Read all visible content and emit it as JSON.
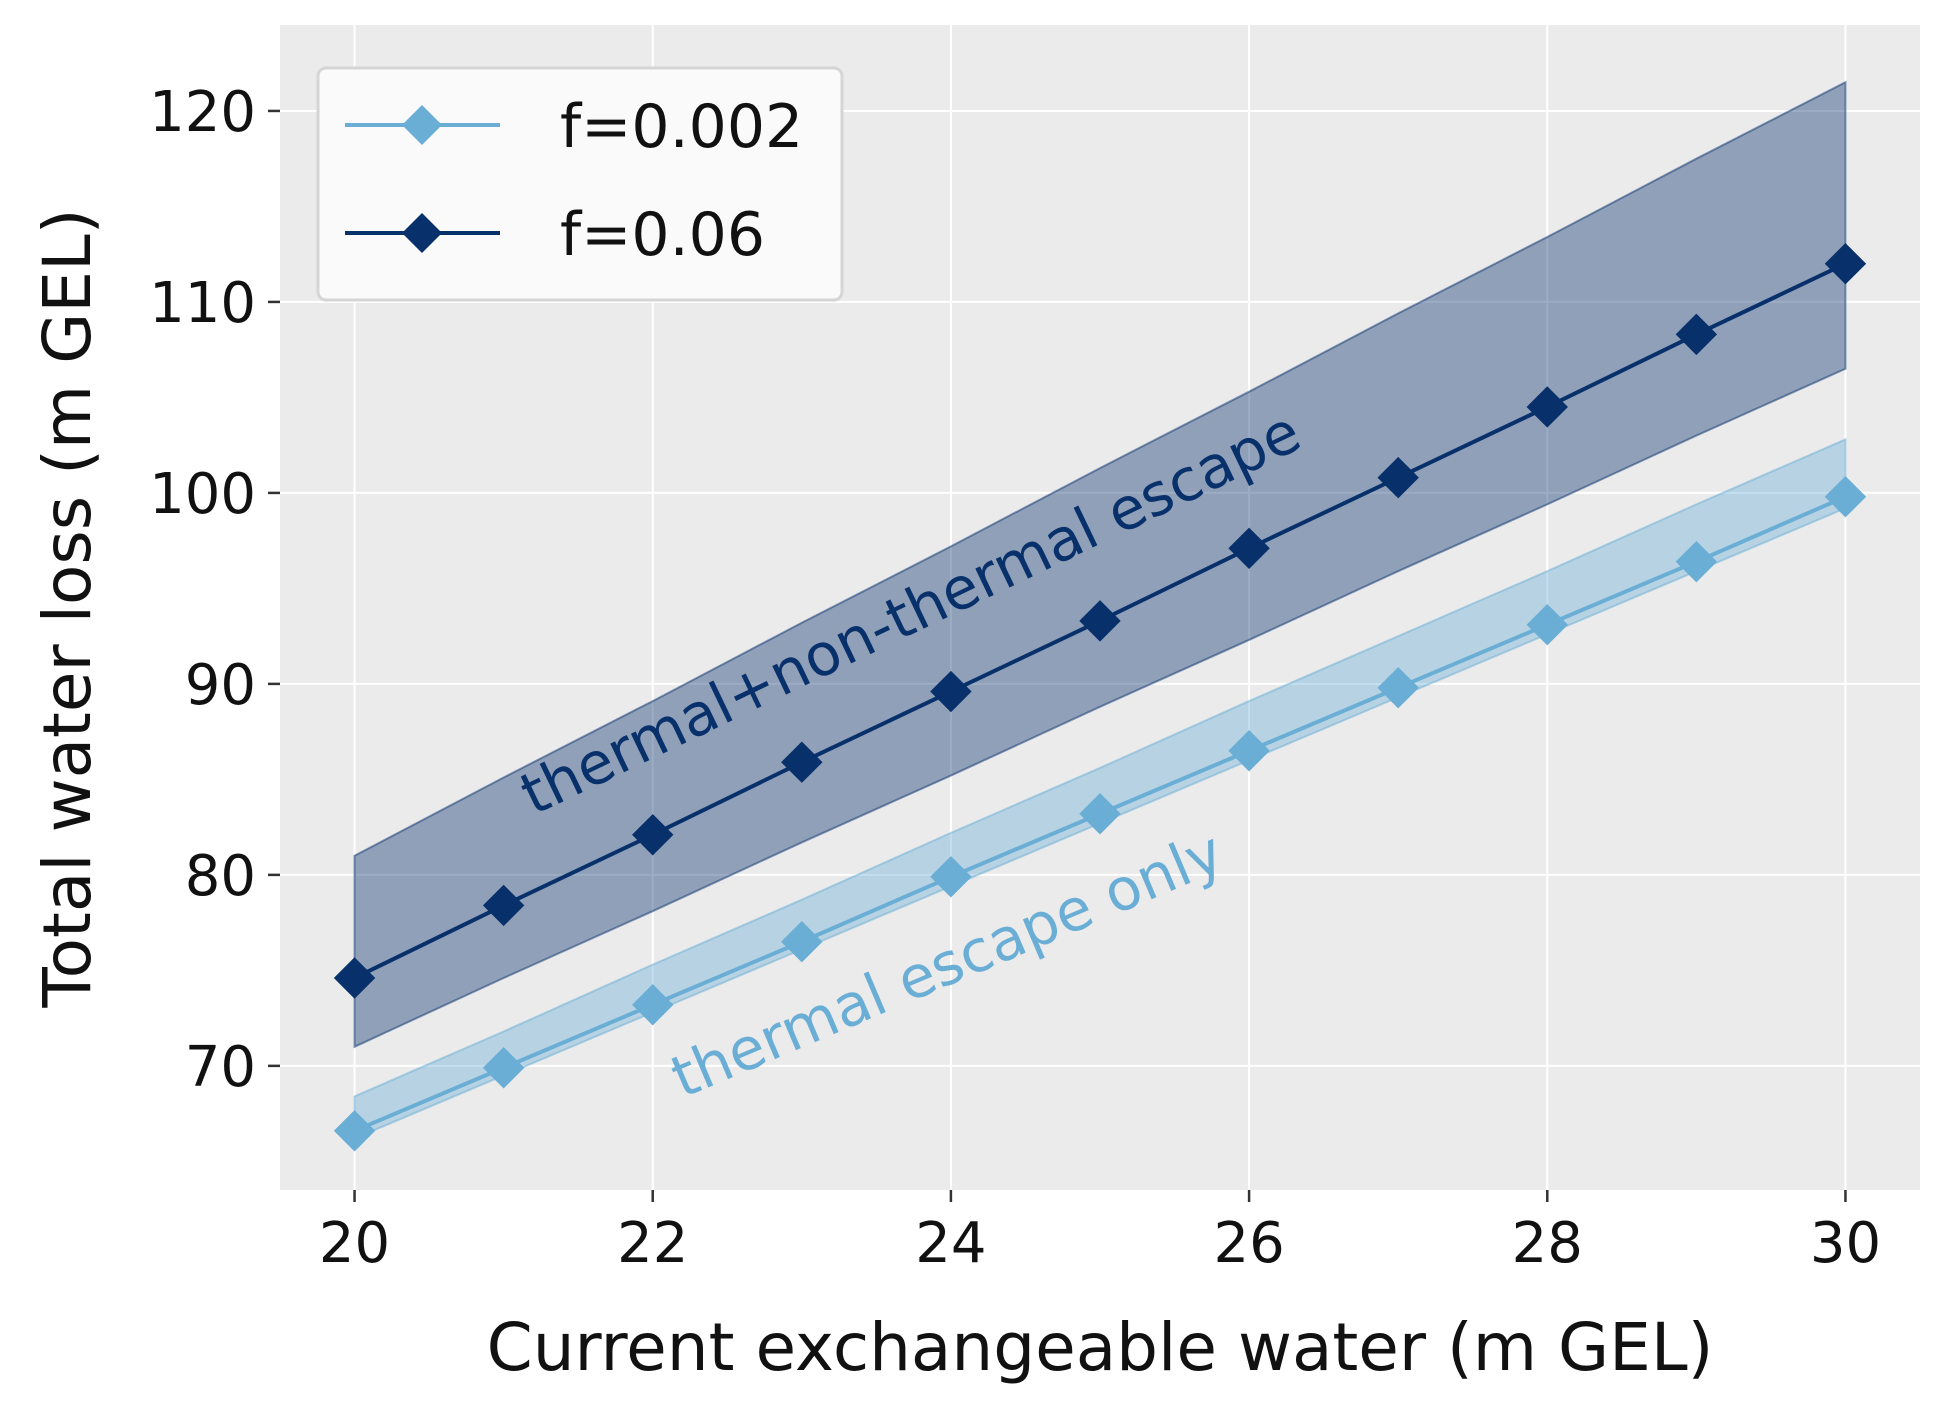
{
  "chart_data": {
    "type": "line",
    "title": "",
    "xlabel": "Current exchangeable water (m GEL)",
    "ylabel": "Total water loss (m GEL)",
    "xlim": [
      19.5,
      30.5
    ],
    "ylim": [
      63.5,
      124.5
    ],
    "xticks": [
      20,
      22,
      24,
      26,
      28,
      30
    ],
    "yticks": [
      70,
      80,
      90,
      100,
      110,
      120
    ],
    "grid": true,
    "legend_position": "top-left",
    "x": [
      20,
      21,
      22,
      23,
      24,
      25,
      26,
      27,
      28,
      29,
      30
    ],
    "series": [
      {
        "name": "f=0.002",
        "color": "#6aaed6",
        "marker": "diamond",
        "values": [
          66.6,
          69.9,
          73.2,
          76.5,
          79.9,
          83.2,
          86.5,
          89.8,
          93.1,
          96.4,
          99.8
        ],
        "band_lower": [
          66.2,
          69.5,
          72.8,
          76.1,
          79.4,
          82.7,
          86.0,
          89.3,
          92.6,
          95.9,
          99.2
        ],
        "band_upper": [
          68.4,
          71.8,
          75.3,
          78.7,
          82.2,
          85.6,
          89.1,
          92.5,
          95.9,
          99.4,
          102.8
        ]
      },
      {
        "name": "f=0.06",
        "color": "#08306b",
        "marker": "diamond",
        "values": [
          74.6,
          78.4,
          82.1,
          85.9,
          89.6,
          93.3,
          97.1,
          100.8,
          104.5,
          108.3,
          112.0
        ],
        "band_lower": [
          71.0,
          74.6,
          78.1,
          81.7,
          85.2,
          88.8,
          92.3,
          95.9,
          99.4,
          103.0,
          106.5
        ],
        "band_upper": [
          81.0,
          85.1,
          89.1,
          93.2,
          97.2,
          101.3,
          105.3,
          109.4,
          113.4,
          117.5,
          121.5
        ]
      }
    ],
    "annotations": [
      {
        "text": "thermal+non-thermal escape",
        "color": "#08306b"
      },
      {
        "text": "thermal escape only",
        "color": "#6aaed6"
      }
    ]
  }
}
